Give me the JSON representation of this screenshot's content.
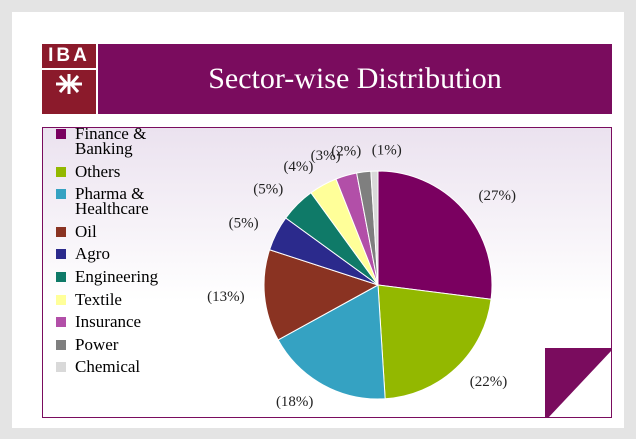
{
  "logo": {
    "text": "IBA"
  },
  "chart_data": {
    "type": "pie",
    "title": "Sector-wise Distribution",
    "categories": [
      "Finance & Banking",
      "Others",
      "Pharma & Healthcare",
      "Oil",
      "Agro",
      "Engineering",
      "Textile",
      "Insurance",
      "Power",
      "Chemical"
    ],
    "values": [
      27,
      22,
      18,
      13,
      5,
      5,
      4,
      3,
      2,
      1
    ],
    "value_labels": [
      "(27%)",
      "(22%)",
      "(18%)",
      "(13%)",
      "(5%)",
      "(5%)",
      "(4%)",
      "(3%)",
      "(2%)",
      "(1%)"
    ],
    "colors": [
      "#7a0060",
      "#93b800",
      "#35a2c2",
      "#8a3322",
      "#2b2a8c",
      "#0f7a68",
      "#ffff99",
      "#b24fa8",
      "#7f7f7f",
      "#d9d9d9"
    ],
    "legend": "left"
  }
}
